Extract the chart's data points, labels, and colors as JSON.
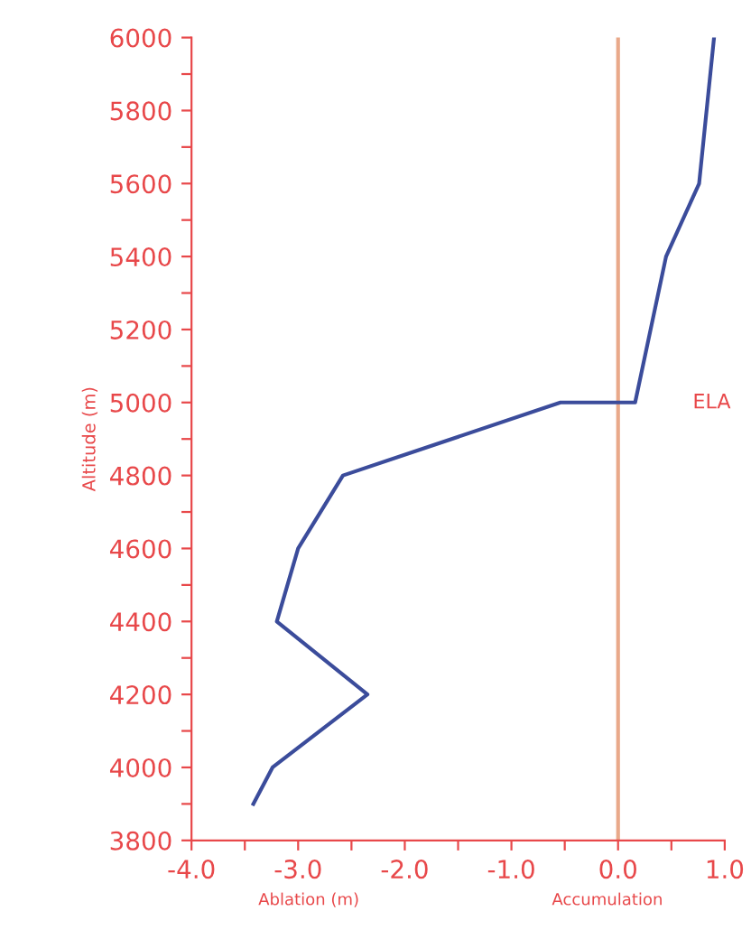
{
  "chart_data": {
    "type": "line",
    "ylabel": "Altitude (m)",
    "annotations": [
      "Ablation (m)",
      "Accumulation",
      "ELA"
    ],
    "series": [
      {
        "color": "#3b4c9b",
        "x": [
          0.9,
          0.76,
          0.45,
          0.16,
          -0.54,
          -2.58,
          -3.0,
          -3.2,
          -2.35,
          -3.24,
          -3.42
        ],
        "values": [
          6000,
          5600,
          5400,
          5000,
          5000,
          4800,
          4600,
          4400,
          4200,
          4000,
          3900
        ]
      }
    ],
    "xlim": [
      -4.0,
      1.0
    ],
    "xticks": [
      {
        "value": -4,
        "label": "-4.0"
      },
      {
        "value": -3.5,
        "label": null
      },
      {
        "value": -3,
        "label": "-3.0"
      },
      {
        "value": -2.5,
        "label": null
      },
      {
        "value": -2,
        "label": "-2.0"
      },
      {
        "value": -1.5,
        "label": null
      },
      {
        "value": -1,
        "label": "-1.0"
      },
      {
        "value": -0.5,
        "label": null
      },
      {
        "value": 0,
        "label": "0.0"
      },
      {
        "value": 0.5,
        "label": null
      },
      {
        "value": 1,
        "label": "1.0"
      }
    ],
    "ylim": [
      3800,
      6000
    ],
    "yticks": [
      3800,
      {
        "value": 3900,
        "label": null
      },
      4000,
      {
        "value": 4100,
        "label": null
      },
      4200,
      {
        "value": 4300,
        "label": null
      },
      4400,
      {
        "value": 4500,
        "label": null
      },
      4600,
      {
        "value": 4700,
        "label": null
      },
      4800,
      {
        "value": 4900,
        "label": null
      },
      5000,
      {
        "value": 5100,
        "label": null
      },
      5200,
      {
        "value": 5300,
        "label": null
      },
      5400,
      {
        "value": 5500,
        "label": null
      },
      5600,
      {
        "value": 5700,
        "label": null
      },
      5800,
      {
        "value": 5900,
        "label": null
      },
      6000
    ],
    "ref_lines": [
      {
        "axis": "x",
        "value": 0.0,
        "label": null,
        "color": "#e9a98a"
      }
    ],
    "grid": false,
    "legend": false,
    "marker": "none",
    "line_style": "solid"
  }
}
